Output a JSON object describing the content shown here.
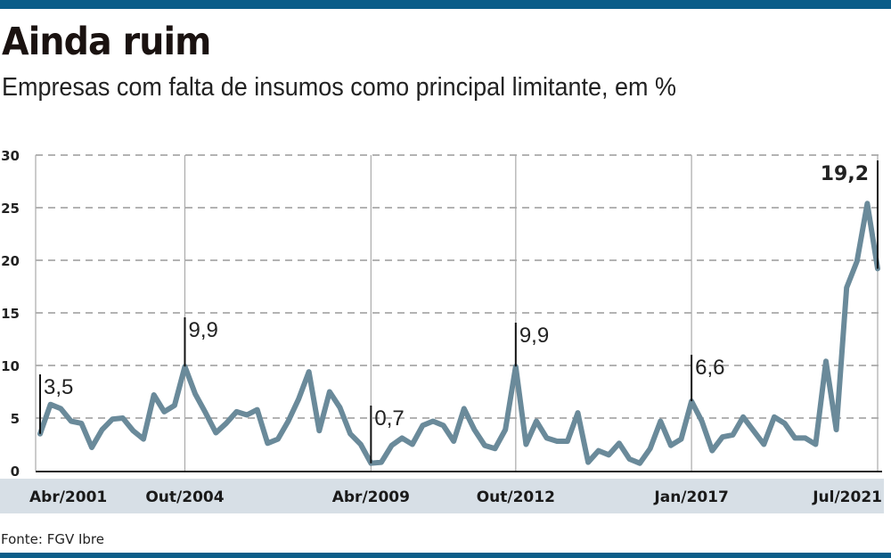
{
  "title": "Ainda ruim",
  "subtitle": "Empresas com falta de insumos como principal limitante, em %",
  "source": "Fonte: FGV Ibre",
  "colors": {
    "line": "#6a8a9a",
    "bar": "#0b5d89",
    "band": "#d7dfe6"
  },
  "chart_data": {
    "type": "line",
    "title": "Ainda ruim",
    "subtitle": "Empresas com falta de insumos como principal limitante, em %",
    "frequency": "quarterly",
    "start": "Abr/2001",
    "end": "Jul/2021",
    "values": [
      3.5,
      6.3,
      5.9,
      4.7,
      4.5,
      2.2,
      3.9,
      4.9,
      5.0,
      3.8,
      3.0,
      7.2,
      5.6,
      6.2,
      9.9,
      7.3,
      5.5,
      3.6,
      4.5,
      5.6,
      5.3,
      5.8,
      2.6,
      3.0,
      4.7,
      6.8,
      9.4,
      3.8,
      7.5,
      6.0,
      3.5,
      2.5,
      0.7,
      0.8,
      2.4,
      3.1,
      2.5,
      4.3,
      4.7,
      4.3,
      2.8,
      5.9,
      3.9,
      2.4,
      2.1,
      3.9,
      9.9,
      2.5,
      4.7,
      3.1,
      2.8,
      2.8,
      5.5,
      0.8,
      1.9,
      1.5,
      2.6,
      1.1,
      0.7,
      2.1,
      4.7,
      2.4,
      3.0,
      6.6,
      4.7,
      1.9,
      3.2,
      3.4,
      5.1,
      3.8,
      2.5,
      5.1,
      4.5,
      3.1,
      3.1,
      2.5,
      10.4,
      3.9,
      17.4,
      19.9,
      25.4,
      19.2
    ],
    "ylim": [
      0,
      30
    ],
    "yticks": [
      "0",
      "5",
      "10",
      "15",
      "20",
      "25",
      "30"
    ],
    "xticks": [
      {
        "label": "Abr/2001",
        "index": 0
      },
      {
        "label": "Out/2004",
        "index": 14
      },
      {
        "label": "Abr/2009",
        "index": 32
      },
      {
        "label": "Out/2012",
        "index": 46
      },
      {
        "label": "Jan/2017",
        "index": 63
      },
      {
        "label": "Jul/2021",
        "index": 81
      }
    ],
    "annotations": [
      {
        "label": "3,5",
        "index": 0
      },
      {
        "label": "9,9",
        "index": 14
      },
      {
        "label": "0,7",
        "index": 32
      },
      {
        "label": "9,9",
        "index": 46
      },
      {
        "label": "6,6",
        "index": 63
      },
      {
        "label": "19,2",
        "index": 81,
        "bold": true
      }
    ],
    "grid": true,
    "xlabel": "",
    "ylabel": ""
  }
}
